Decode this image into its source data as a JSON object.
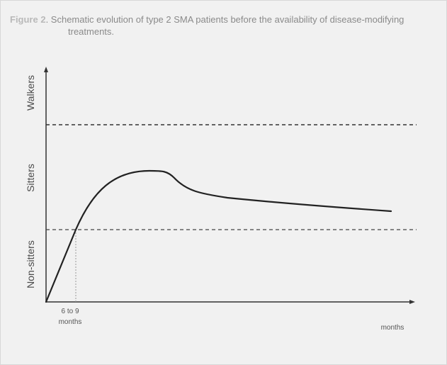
{
  "caption": {
    "label": "Figure 2",
    "text_line1": ". Schematic evolution of type 2 SMA patients before the availability of disease-modifying",
    "text_line2": "treatments."
  },
  "diagram": {
    "y_categories": [
      "Non-sitters",
      "Sitters",
      "Walkers"
    ],
    "x_annotation_line1": "6 to 9",
    "x_annotation_line2": "months",
    "x_axis_end_label": "months"
  },
  "colors": {
    "panel_bg": "#f1f1f1",
    "caption_label": "#b9b9b9",
    "caption_text": "#8a8a8a",
    "axis": "#333333",
    "curve": "#222222",
    "threshold_line": "#333333",
    "guide_line": "#999999"
  }
}
